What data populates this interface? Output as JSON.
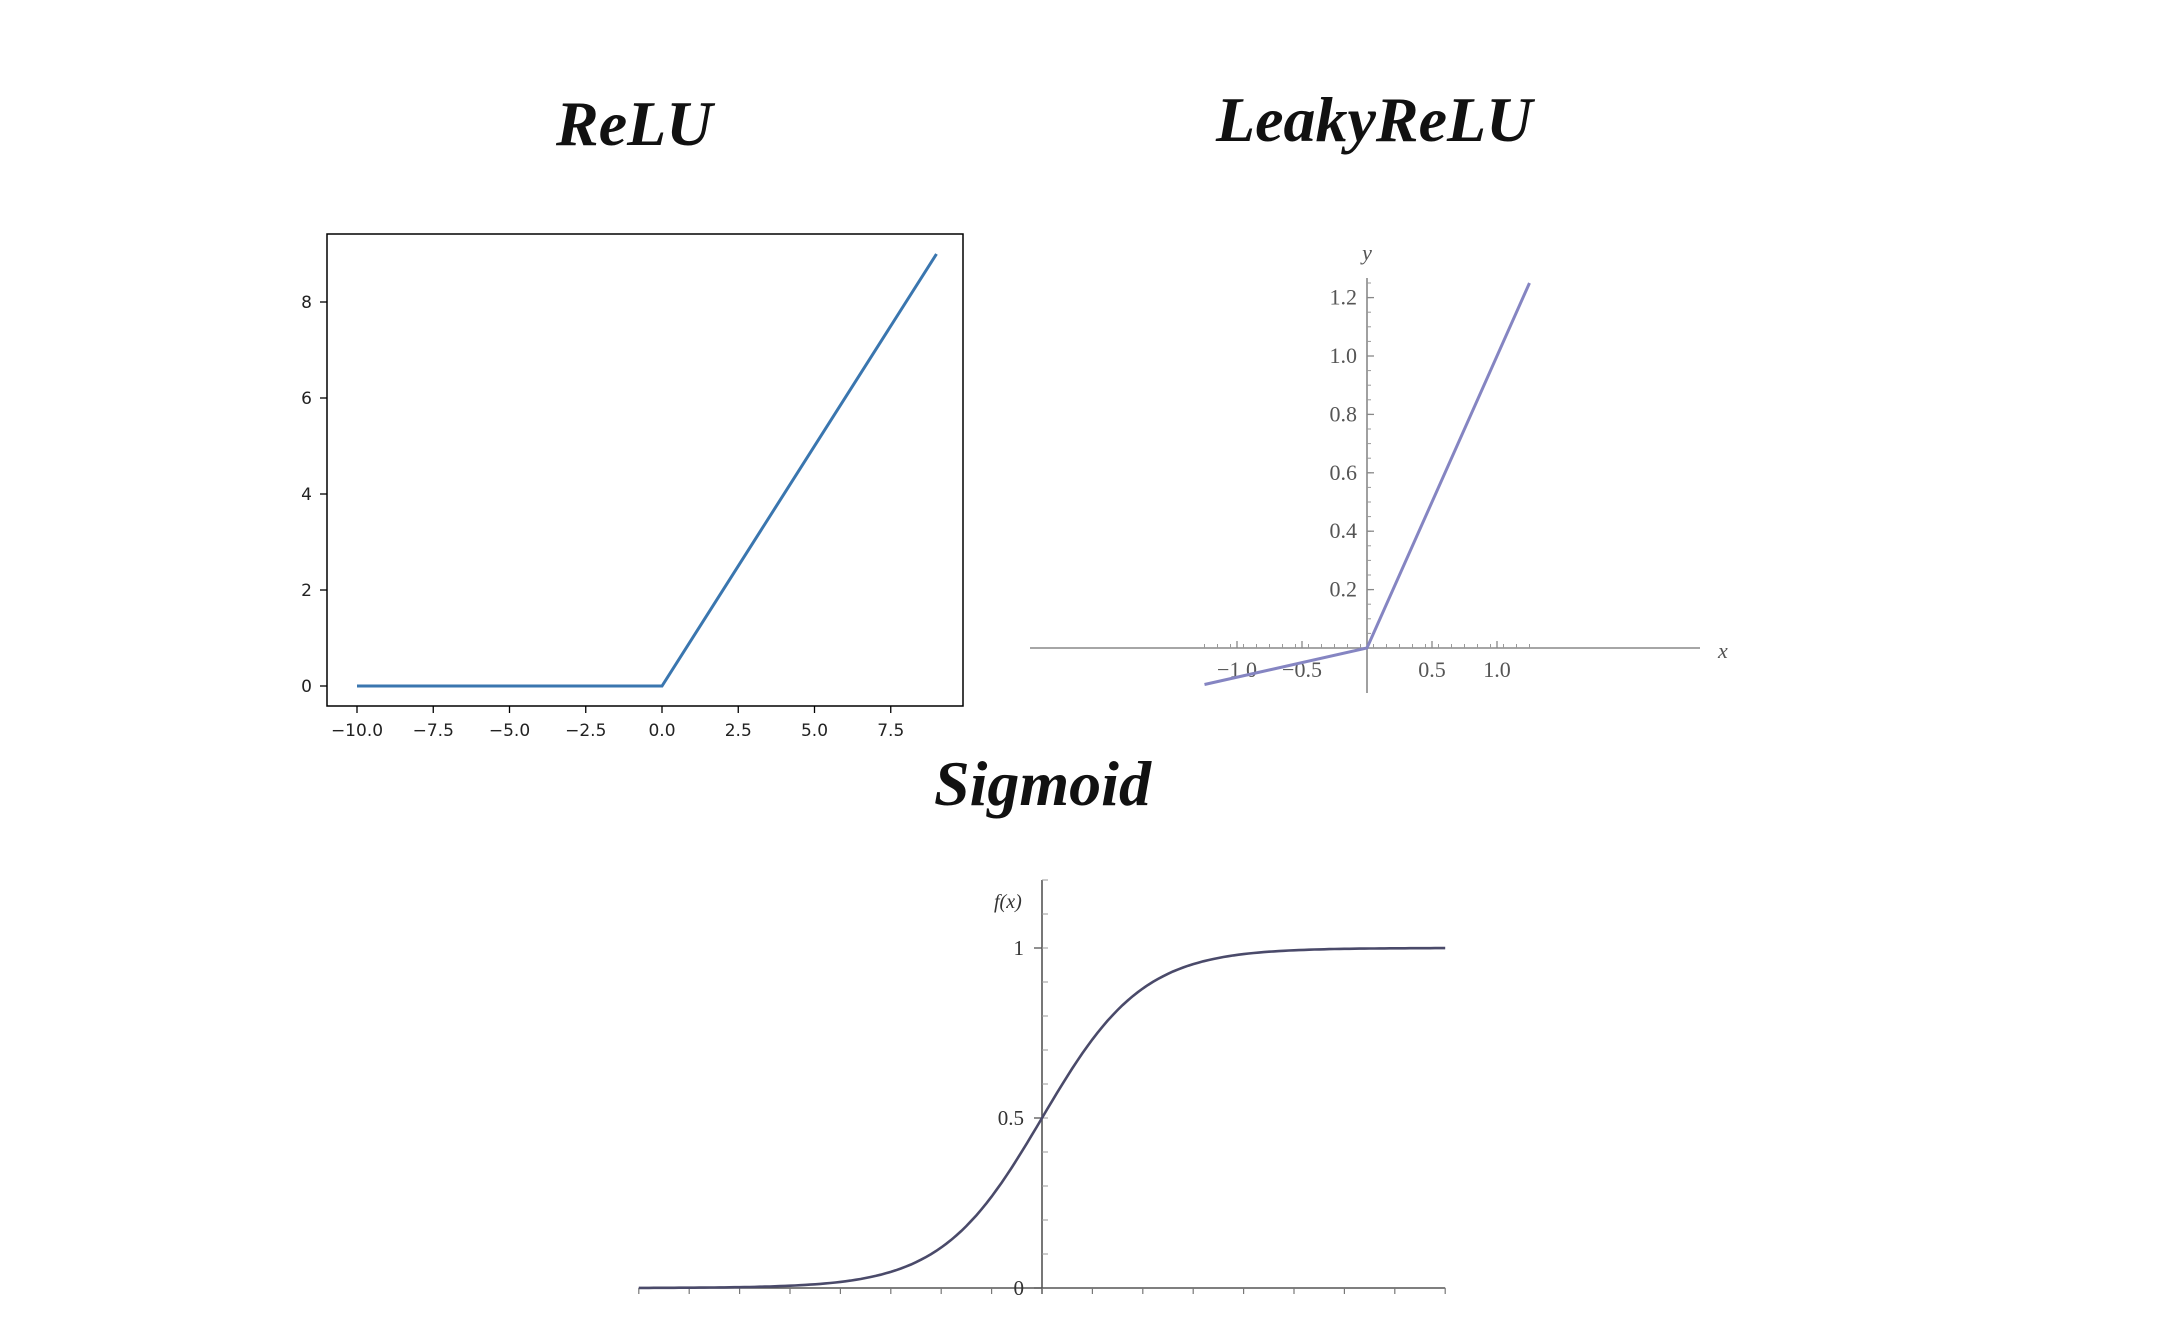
{
  "titles": {
    "relu": "ReLU",
    "leaky": "LeakyReLU",
    "sigmoid": "Sigmoid"
  },
  "chart_data": [
    {
      "type": "line",
      "title": "ReLU",
      "xlim": [
        -10,
        9
      ],
      "ylim": [
        0,
        9
      ],
      "xticks": [
        "−10.0",
        "−7.5",
        "−5.0",
        "−2.5",
        "0.0",
        "2.5",
        "5.0",
        "7.5"
      ],
      "yticks": [
        "0",
        "2",
        "4",
        "6",
        "8"
      ],
      "series": [
        {
          "x": [
            -10,
            0,
            9
          ],
          "y": [
            0,
            0,
            9
          ],
          "color": "#3a76af"
        }
      ],
      "grid": false
    },
    {
      "type": "line",
      "title": "LeakyReLU",
      "xlabel": "x",
      "ylabel": "y",
      "xlim": [
        -1.25,
        1.25
      ],
      "ylim": [
        -0.125,
        1.25
      ],
      "xticks": [
        "−1.0",
        "−0.5",
        "0.5",
        "1.0"
      ],
      "yticks": [
        "0.2",
        "0.4",
        "0.6",
        "0.8",
        "1.0",
        "1.2"
      ],
      "series": [
        {
          "x": [
            -1.25,
            0,
            1.25
          ],
          "y": [
            -0.125,
            0,
            1.25
          ],
          "color": "#8585c2"
        }
      ],
      "grid": false
    },
    {
      "type": "line",
      "title": "Sigmoid",
      "ylabel": "f(x)",
      "xlim": [
        -8,
        8
      ],
      "ylim": [
        0,
        1
      ],
      "yticks": [
        "0",
        "0.5",
        "1"
      ],
      "series": [
        {
          "function": "1/(1+exp(-x))",
          "color": "#4a4a6a"
        }
      ],
      "grid": false
    }
  ]
}
